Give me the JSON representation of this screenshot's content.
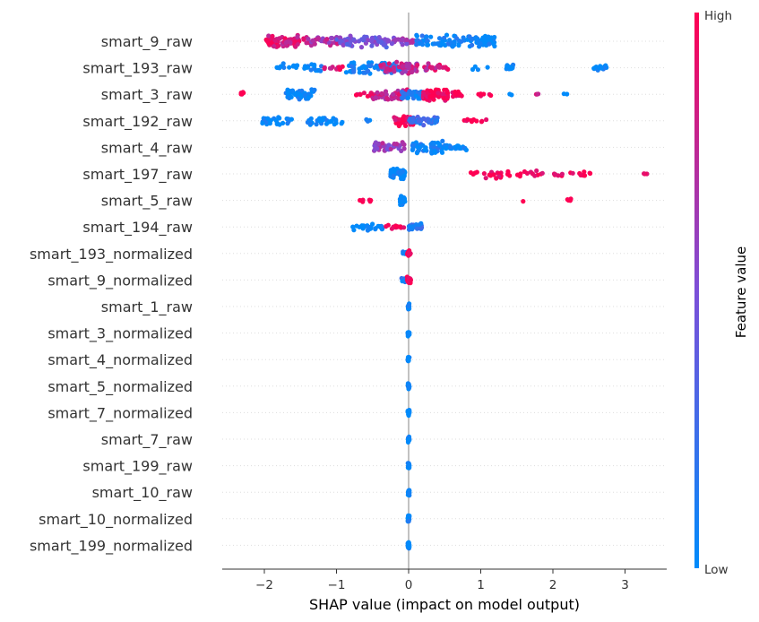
{
  "chart_data": {
    "type": "scatter",
    "subtype": "shap-beeswarm-summary",
    "xlabel": "SHAP value (impact on model output)",
    "xlim": [
      -2.6,
      3.6
    ],
    "xticks": [
      -2,
      -1,
      0,
      1,
      2,
      3
    ],
    "xtick_labels": [
      "−2",
      "−1",
      "0",
      "1",
      "2",
      "3"
    ],
    "colorbar": {
      "title": "Feature value",
      "high_label": "High",
      "low_label": "Low",
      "low_color": "#008bfb",
      "mid_color": "#7c4fd8",
      "high_color": "#ff0052"
    },
    "grid": "dotted horizontal row guides",
    "features": [
      {
        "name": "smart_9_raw",
        "points": [
          {
            "x_range": [
              -2.0,
              -1.4
            ],
            "feature_value": 0.85,
            "density": 70
          },
          {
            "x_range": [
              -1.4,
              -0.9
            ],
            "feature_value": 0.7,
            "density": 40
          },
          {
            "x_range": [
              -1.0,
              -0.3
            ],
            "feature_value": 0.45,
            "density": 55
          },
          {
            "x_range": [
              -0.3,
              0.1
            ],
            "feature_value": 0.6,
            "density": 25
          },
          {
            "x_range": [
              0.1,
              0.9
            ],
            "feature_value": 0.05,
            "density": 70
          },
          {
            "x_range": [
              0.9,
              1.2
            ],
            "feature_value": 0.0,
            "density": 45
          }
        ]
      },
      {
        "name": "smart_193_raw",
        "points": [
          {
            "x_range": [
              -1.85,
              -1.2
            ],
            "feature_value": 0.0,
            "density": 30
          },
          {
            "x_range": [
              -1.2,
              -0.9
            ],
            "feature_value": 0.9,
            "density": 12
          },
          {
            "x_range": [
              -0.9,
              -0.1
            ],
            "feature_value": 0.05,
            "density": 60
          },
          {
            "x_range": [
              -0.4,
              0.3
            ],
            "feature_value": 0.75,
            "density": 55
          },
          {
            "x_range": [
              0.3,
              0.55
            ],
            "feature_value": 0.85,
            "density": 14
          },
          {
            "x_range": [
              0.85,
              1.1
            ],
            "feature_value": 0.0,
            "density": 4
          },
          {
            "x_range": [
              1.35,
              1.45
            ],
            "feature_value": 0.0,
            "density": 20
          },
          {
            "x_range": [
              2.55,
              2.75
            ],
            "feature_value": 0.0,
            "density": 16
          }
        ]
      },
      {
        "name": "smart_3_raw",
        "points": [
          {
            "x_range": [
              -2.35,
              -2.25
            ],
            "feature_value": 1.0,
            "density": 6
          },
          {
            "x_range": [
              -1.7,
              -1.3
            ],
            "feature_value": 0.0,
            "density": 45
          },
          {
            "x_range": [
              -0.75,
              -0.45
            ],
            "feature_value": 0.95,
            "density": 14
          },
          {
            "x_range": [
              -0.5,
              0.0
            ],
            "feature_value": 0.8,
            "density": 50
          },
          {
            "x_range": [
              -0.1,
              0.2
            ],
            "feature_value": 0.1,
            "density": 40
          },
          {
            "x_range": [
              0.2,
              0.55
            ],
            "feature_value": 1.0,
            "density": 70
          },
          {
            "x_range": [
              0.55,
              0.75
            ],
            "feature_value": 0.95,
            "density": 14
          },
          {
            "x_range": [
              0.95,
              1.15
            ],
            "feature_value": 1.0,
            "density": 6
          },
          {
            "x_range": [
              1.4,
              1.45
            ],
            "feature_value": 0.0,
            "density": 2
          },
          {
            "x_range": [
              1.75,
              1.85
            ],
            "feature_value": 0.9,
            "density": 3
          },
          {
            "x_range": [
              2.15,
              2.2
            ],
            "feature_value": 0.0,
            "density": 2
          }
        ]
      },
      {
        "name": "smart_192_raw",
        "points": [
          {
            "x_range": [
              -2.05,
              -1.6
            ],
            "feature_value": 0.0,
            "density": 30
          },
          {
            "x_range": [
              -1.4,
              -0.9
            ],
            "feature_value": 0.0,
            "density": 30
          },
          {
            "x_range": [
              -0.6,
              -0.5
            ],
            "feature_value": 0.0,
            "density": 4
          },
          {
            "x_range": [
              -0.2,
              0.1
            ],
            "feature_value": 0.95,
            "density": 45
          },
          {
            "x_range": [
              0.0,
              0.4
            ],
            "feature_value": 0.2,
            "density": 40
          },
          {
            "x_range": [
              0.75,
              1.1
            ],
            "feature_value": 1.0,
            "density": 10
          }
        ]
      },
      {
        "name": "smart_4_raw",
        "points": [
          {
            "x_range": [
              -0.5,
              -0.05
            ],
            "feature_value": 0.6,
            "density": 45
          },
          {
            "x_range": [
              0.05,
              0.5
            ],
            "feature_value": 0.05,
            "density": 55
          },
          {
            "x_range": [
              0.5,
              0.8
            ],
            "feature_value": 0.0,
            "density": 20
          }
        ]
      },
      {
        "name": "smart_197_raw",
        "points": [
          {
            "x_range": [
              -0.25,
              -0.05
            ],
            "feature_value": 0.0,
            "density": 60
          },
          {
            "x_range": [
              0.8,
              1.9
            ],
            "feature_value": 1.0,
            "density": 35
          },
          {
            "x_range": [
              2.0,
              2.55
            ],
            "feature_value": 1.0,
            "density": 16
          },
          {
            "x_range": [
              3.25,
              3.32
            ],
            "feature_value": 1.0,
            "density": 3
          }
        ]
      },
      {
        "name": "smart_5_raw",
        "points": [
          {
            "x_range": [
              -0.68,
              -0.52
            ],
            "feature_value": 1.0,
            "density": 6
          },
          {
            "x_range": [
              -0.12,
              -0.05
            ],
            "feature_value": 0.0,
            "density": 40
          },
          {
            "x_range": [
              1.58,
              1.6
            ],
            "feature_value": 1.0,
            "density": 1
          },
          {
            "x_range": [
              2.18,
              2.26
            ],
            "feature_value": 1.0,
            "density": 6
          }
        ]
      },
      {
        "name": "smart_194_raw",
        "points": [
          {
            "x_range": [
              -0.8,
              -0.35
            ],
            "feature_value": 0.0,
            "density": 25
          },
          {
            "x_range": [
              -0.35,
              -0.05
            ],
            "feature_value": 1.0,
            "density": 12
          },
          {
            "x_range": [
              0.0,
              0.2
            ],
            "feature_value": 0.15,
            "density": 30
          }
        ]
      },
      {
        "name": "smart_193_normalized",
        "points": [
          {
            "x_range": [
              -0.08,
              -0.02
            ],
            "feature_value": 0.0,
            "density": 4
          },
          {
            "x_range": [
              -0.02,
              0.03
            ],
            "feature_value": 1.0,
            "density": 20
          }
        ]
      },
      {
        "name": "smart_9_normalized",
        "points": [
          {
            "x_range": [
              -0.1,
              -0.02
            ],
            "feature_value": 0.1,
            "density": 5
          },
          {
            "x_range": [
              -0.02,
              0.03
            ],
            "feature_value": 1.0,
            "density": 20
          }
        ]
      },
      {
        "name": "smart_1_raw",
        "points": [
          {
            "x_range": [
              -0.01,
              0.01
            ],
            "feature_value": 0.0,
            "density": 18
          }
        ]
      },
      {
        "name": "smart_3_normalized",
        "points": [
          {
            "x_range": [
              -0.01,
              0.01
            ],
            "feature_value": 0.0,
            "density": 18
          }
        ]
      },
      {
        "name": "smart_4_normalized",
        "points": [
          {
            "x_range": [
              -0.01,
              0.01
            ],
            "feature_value": 0.0,
            "density": 18
          }
        ]
      },
      {
        "name": "smart_5_normalized",
        "points": [
          {
            "x_range": [
              -0.01,
              0.01
            ],
            "feature_value": 0.0,
            "density": 18
          }
        ]
      },
      {
        "name": "smart_7_normalized",
        "points": [
          {
            "x_range": [
              -0.01,
              0.01
            ],
            "feature_value": 0.0,
            "density": 18
          }
        ]
      },
      {
        "name": "smart_7_raw",
        "points": [
          {
            "x_range": [
              -0.01,
              0.01
            ],
            "feature_value": 0.0,
            "density": 18
          }
        ]
      },
      {
        "name": "smart_199_raw",
        "points": [
          {
            "x_range": [
              -0.01,
              0.01
            ],
            "feature_value": 0.0,
            "density": 18
          }
        ]
      },
      {
        "name": "smart_10_raw",
        "points": [
          {
            "x_range": [
              -0.01,
              0.01
            ],
            "feature_value": 0.0,
            "density": 18
          }
        ]
      },
      {
        "name": "smart_10_normalized",
        "points": [
          {
            "x_range": [
              -0.01,
              0.01
            ],
            "feature_value": 0.0,
            "density": 18
          }
        ]
      },
      {
        "name": "smart_199_normalized",
        "points": [
          {
            "x_range": [
              -0.01,
              0.01
            ],
            "feature_value": 0.0,
            "density": 18
          }
        ]
      }
    ]
  }
}
